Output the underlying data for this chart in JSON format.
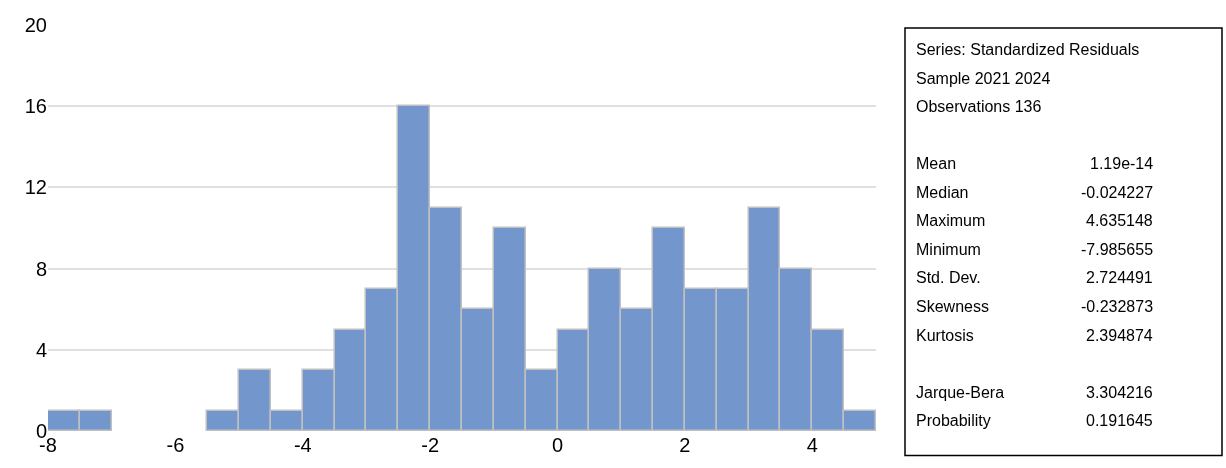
{
  "chart_data": {
    "type": "histogram",
    "bins": [
      -8,
      -7.5,
      -7,
      -6.5,
      -6,
      -5.5,
      -5,
      -4.5,
      -4,
      -3.5,
      -3,
      -2.5,
      -2,
      -1.5,
      -1,
      -0.5,
      0,
      0.5,
      1,
      1.5,
      2,
      2.5,
      3,
      3.5,
      4,
      4.5,
      5
    ],
    "values": [
      1,
      1,
      0,
      0,
      0,
      1,
      3,
      1,
      3,
      5,
      7,
      16,
      11,
      6,
      10,
      3,
      5,
      8,
      6,
      10,
      7,
      7,
      11,
      8,
      5,
      1
    ],
    "color": "#7396cc",
    "xlim": [
      -8,
      5
    ],
    "xticks": [
      -8,
      -6,
      -4,
      -2,
      0,
      2,
      4
    ],
    "ylim": [
      0,
      20
    ],
    "yticks": [
      0,
      4,
      8,
      12,
      16,
      20
    ],
    "grid": "y",
    "annotations": [
      "Series: Standardized Residuals",
      "Sample 2021 2024",
      "Observations 136",
      "Mean",
      "1.19e-14",
      "Median",
      "-0.024227",
      "Maximum",
      "4.635148",
      "Minimum",
      "-7.985655",
      "Std. Dev.",
      "2.724491",
      "Skewness",
      "-0.232873",
      "Kurtosis",
      "2.394874",
      "Jarque-Bera",
      "3.304216",
      "Probability",
      "0.191645"
    ]
  }
}
